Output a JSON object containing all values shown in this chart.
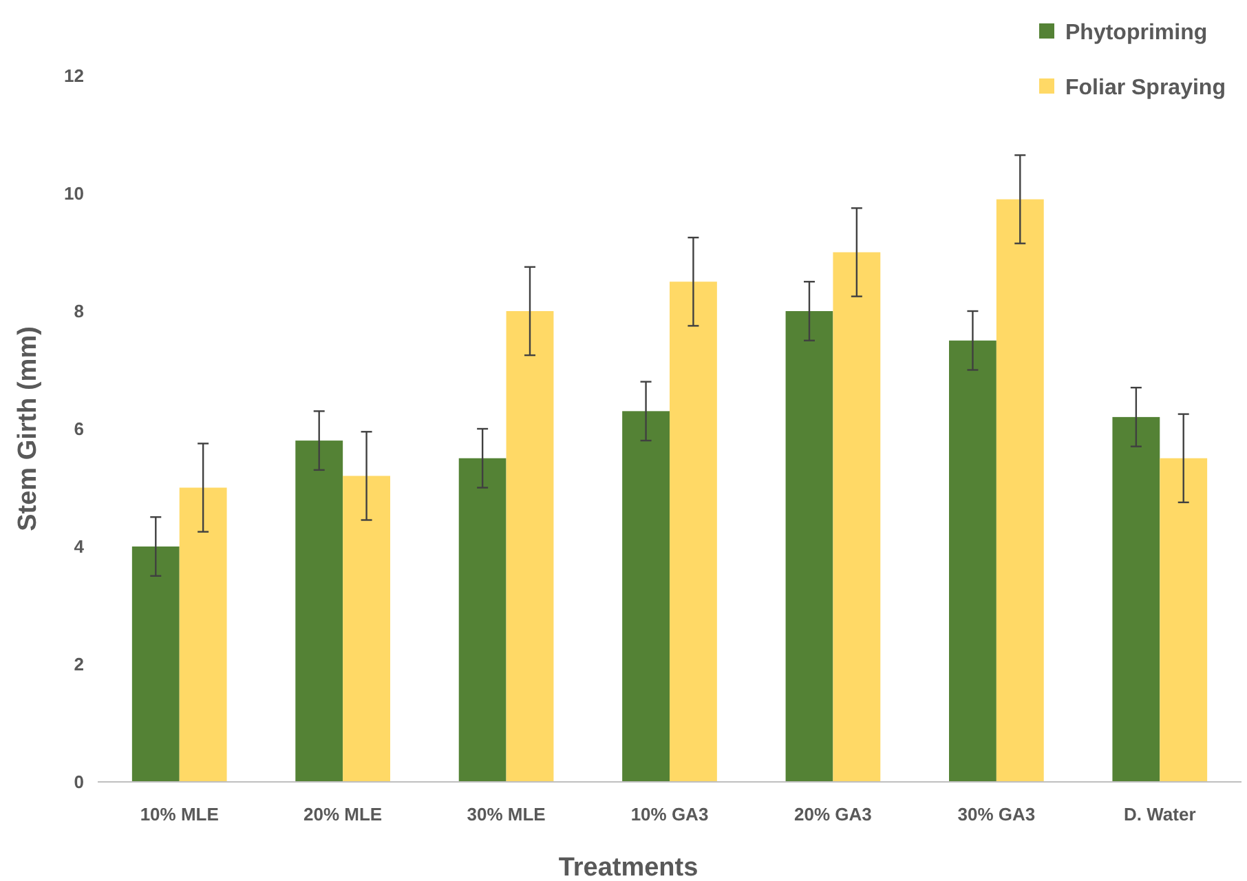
{
  "chart_data": {
    "type": "bar",
    "xlabel": "Treatments",
    "ylabel": "Stem Girth (mm)",
    "categories": [
      "10% MLE",
      "20% MLE",
      "30% MLE",
      "10% GA3",
      "20% GA3",
      "30% GA3",
      "D. Water"
    ],
    "series": [
      {
        "name": "Phytopriming",
        "color": "#548235",
        "values": [
          4.0,
          5.8,
          5.5,
          6.3,
          8.0,
          7.5,
          6.2
        ],
        "errors": [
          0.5,
          0.5,
          0.5,
          0.5,
          0.5,
          0.5,
          0.5
        ]
      },
      {
        "name": "Foliar Spraying",
        "color": "#ffd966",
        "values": [
          5.0,
          5.2,
          8.0,
          8.5,
          9.0,
          9.9,
          5.5
        ],
        "errors": [
          0.75,
          0.75,
          0.75,
          0.75,
          0.75,
          0.75,
          0.75
        ]
      }
    ],
    "ylim": [
      0,
      12
    ],
    "yticks": [
      0,
      2,
      4,
      6,
      8,
      10,
      12
    ],
    "grid": false,
    "legend": "top right"
  }
}
